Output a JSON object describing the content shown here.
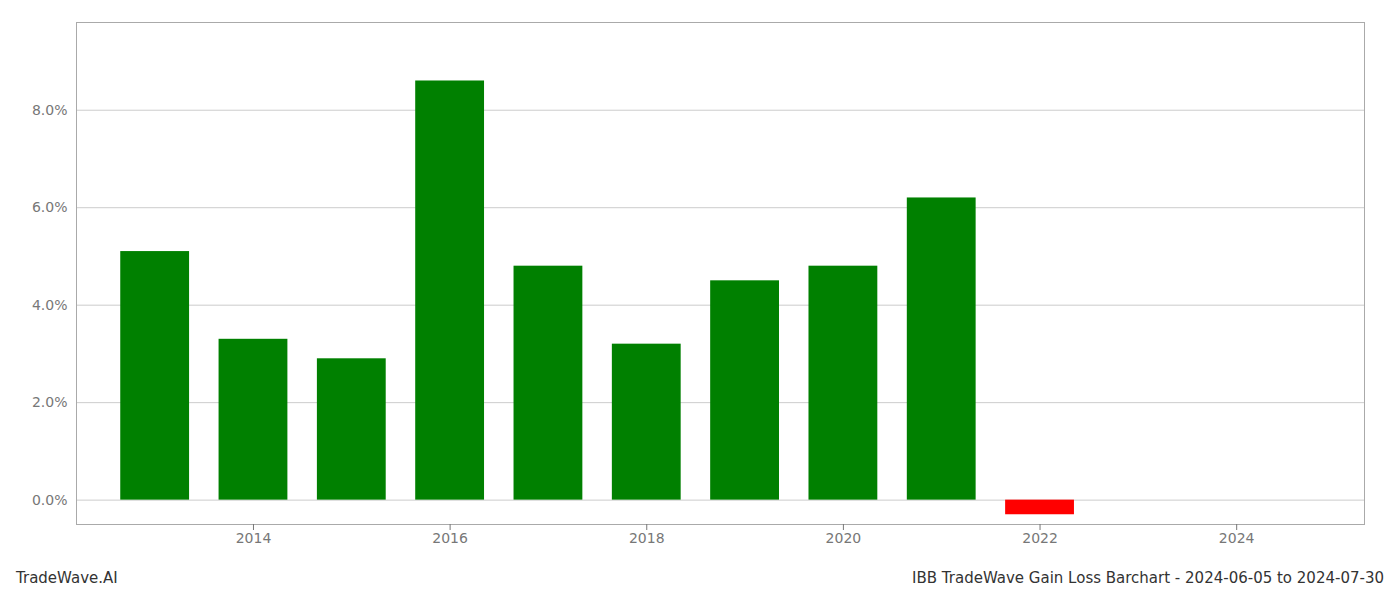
{
  "chart_data": {
    "type": "bar",
    "title": "IBB TradeWave Gain Loss Barchart - 2024-06-05 to 2024-07-30",
    "annotations": [
      "TradeWave.AI"
    ],
    "x": [
      2013,
      2014,
      2015,
      2016,
      2017,
      2018,
      2019,
      2020,
      2021,
      2022,
      2023
    ],
    "values": [
      0.051,
      0.033,
      0.029,
      0.086,
      0.048,
      0.032,
      0.045,
      0.048,
      0.062,
      -0.003,
      null
    ],
    "colors": [
      "#008000",
      "#008000",
      "#008000",
      "#008000",
      "#008000",
      "#008000",
      "#008000",
      "#008000",
      "#008000",
      "#ff0000",
      null
    ],
    "xlim": [
      2012.2,
      2025.3
    ],
    "xticks": [
      2014,
      2016,
      2018,
      2020,
      2022,
      2024
    ],
    "ylim": [
      -0.005,
      0.098
    ],
    "yticks": [
      {
        "value": 0.0,
        "label": "0.0%"
      },
      {
        "value": 0.02,
        "label": "2.0%"
      },
      {
        "value": 0.04,
        "label": "4.0%"
      },
      {
        "value": 0.06,
        "label": "6.0%"
      },
      {
        "value": 0.08,
        "label": "8.0%"
      }
    ],
    "grid": true
  }
}
